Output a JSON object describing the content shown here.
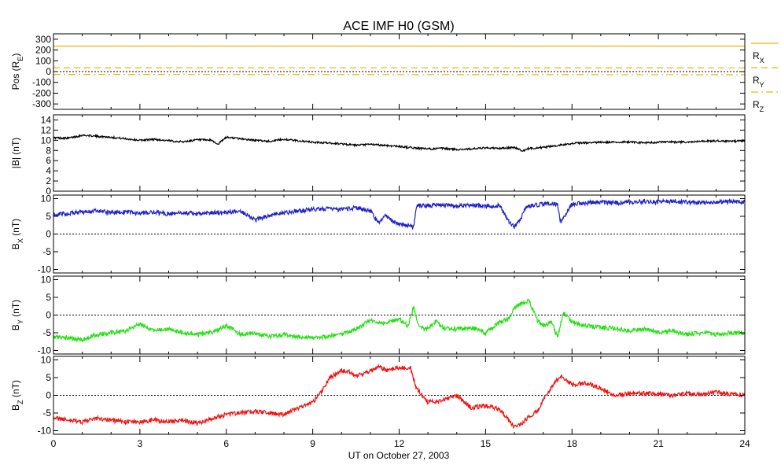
{
  "title": "ACE IMF H0 (GSM)",
  "xlabel": "UT on October 27, 2003",
  "x_ticks": [
    "0",
    "3",
    "6",
    "9",
    "12",
    "15",
    "18",
    "21",
    "24"
  ],
  "chart_data": [
    {
      "type": "line",
      "ylabel": "Pos (RE)",
      "ylabel_main": "Pos (R",
      "ylabel_sub": "E",
      "ylabel_end": ")",
      "ylim": [
        -350,
        350
      ],
      "yticks": [
        -300,
        -200,
        -100,
        0,
        100,
        200,
        300
      ],
      "ytick_labels": [
        "-300",
        "-200",
        "-100",
        "0",
        "100",
        "200",
        "300"
      ],
      "zero_line": true,
      "x": [
        0,
        24
      ],
      "series": [
        {
          "name": "RX",
          "name_main": "R",
          "name_sub": "X",
          "color": "#f0b400",
          "dash": "solid",
          "values": [
            236,
            236
          ]
        },
        {
          "name": "RY",
          "name_main": "R",
          "name_sub": "Y",
          "color": "#f0b400",
          "dash": "dashed",
          "values": [
            36,
            34
          ]
        },
        {
          "name": "RZ",
          "name_main": "R",
          "name_sub": "Z",
          "color": "#f0b400",
          "dash": "dashdot",
          "values": [
            -26,
            -29
          ]
        }
      ]
    },
    {
      "type": "line",
      "ylabel": "|B| (nT)",
      "ylim": [
        0,
        15
      ],
      "yticks": [
        0,
        2,
        4,
        6,
        8,
        10,
        12,
        14
      ],
      "ytick_labels": [
        "0",
        "2",
        "4",
        "6",
        "8",
        "10",
        "12",
        "14"
      ],
      "zero_line": false,
      "x": [
        0,
        0.5,
        1.0,
        1.5,
        2.0,
        2.5,
        3.0,
        3.5,
        4.0,
        4.5,
        5.0,
        5.5,
        5.7,
        6.0,
        6.5,
        7.0,
        7.5,
        8.0,
        8.5,
        9.0,
        9.5,
        10.0,
        10.5,
        11.0,
        11.5,
        12.0,
        12.5,
        13.0,
        13.5,
        14.0,
        14.5,
        15.0,
        15.5,
        16.0,
        16.3,
        16.5,
        17.0,
        17.5,
        18.0,
        18.5,
        19.0,
        19.5,
        20.0,
        20.5,
        21.0,
        21.5,
        22.0,
        22.5,
        23.0,
        23.5,
        24.0
      ],
      "series": [
        {
          "name": "|B|",
          "color": "#000000",
          "values": [
            10.5,
            10.4,
            11.0,
            10.8,
            10.6,
            10.3,
            10.0,
            10.2,
            9.9,
            9.7,
            10.1,
            10.0,
            9.2,
            10.6,
            10.3,
            10.0,
            9.8,
            10.2,
            9.9,
            9.6,
            9.5,
            9.3,
            9.0,
            9.2,
            9.0,
            8.8,
            8.5,
            8.3,
            8.4,
            8.2,
            8.3,
            8.5,
            8.4,
            8.6,
            7.9,
            8.4,
            8.6,
            9.0,
            9.4,
            9.5,
            9.6,
            9.6,
            9.7,
            9.5,
            9.6,
            9.7,
            9.6,
            9.8,
            9.9,
            9.8,
            9.9
          ]
        }
      ]
    },
    {
      "type": "line",
      "ylabel": "BX (nT)",
      "ylabel_main": "B",
      "ylabel_sub": "X",
      "ylabel_end": " (nT)",
      "ylim": [
        -11,
        11
      ],
      "yticks": [
        -10,
        -5,
        0,
        5,
        10
      ],
      "ytick_labels": [
        "-10",
        "-5",
        "0",
        "5",
        "10"
      ],
      "zero_line": true,
      "x": [
        0,
        0.5,
        1.0,
        1.5,
        2.0,
        2.5,
        3.0,
        3.5,
        4.0,
        4.5,
        5.0,
        5.5,
        6.0,
        6.5,
        6.8,
        7.0,
        7.3,
        7.6,
        8.0,
        8.5,
        9.0,
        9.5,
        10.0,
        10.5,
        11.0,
        11.3,
        11.5,
        11.8,
        12.0,
        12.3,
        12.5,
        12.6,
        13.0,
        13.5,
        14.0,
        14.5,
        15.0,
        15.5,
        15.8,
        16.0,
        16.2,
        16.4,
        16.6,
        17.0,
        17.5,
        17.6,
        18.0,
        18.5,
        19.0,
        19.5,
        20.0,
        20.5,
        21.0,
        21.5,
        22.0,
        22.5,
        23.0,
        23.5,
        24.0
      ],
      "series": [
        {
          "name": "BX",
          "color": "#2020c8",
          "values": [
            5.5,
            5.8,
            6.2,
            6.5,
            6.0,
            6.3,
            5.8,
            6.1,
            5.7,
            6.0,
            5.6,
            6.0,
            6.2,
            6.5,
            5.2,
            4.0,
            4.8,
            5.5,
            6.0,
            6.5,
            7.0,
            7.2,
            6.8,
            7.5,
            6.5,
            3.0,
            5.5,
            3.5,
            3.0,
            2.5,
            2.0,
            8.0,
            8.0,
            8.2,
            7.8,
            8.2,
            7.8,
            8.0,
            3.5,
            2.0,
            4.0,
            7.5,
            8.0,
            8.5,
            8.5,
            3.5,
            8.5,
            8.8,
            9.0,
            8.8,
            9.0,
            9.2,
            9.0,
            9.3,
            9.0,
            8.8,
            9.0,
            9.2,
            9.0
          ]
        }
      ]
    },
    {
      "type": "line",
      "ylabel": "BY (nT)",
      "ylabel_main": "B",
      "ylabel_sub": "Y",
      "ylabel_end": " (nT)",
      "ylim": [
        -11,
        11
      ],
      "yticks": [
        -10,
        -5,
        0,
        5,
        10
      ],
      "ytick_labels": [
        "-10",
        "-5",
        "0",
        "5",
        "10"
      ],
      "zero_line": true,
      "x": [
        0,
        0.5,
        1.0,
        1.5,
        2.0,
        2.5,
        3.0,
        3.5,
        4.0,
        4.5,
        5.0,
        5.5,
        6.0,
        6.5,
        7.0,
        7.5,
        8.0,
        8.5,
        9.0,
        9.5,
        10.0,
        10.5,
        11.0,
        11.5,
        12.0,
        12.3,
        12.5,
        12.7,
        13.0,
        13.3,
        13.5,
        14.0,
        14.5,
        15.0,
        15.5,
        15.8,
        16.0,
        16.3,
        16.5,
        16.8,
        17.0,
        17.3,
        17.5,
        17.7,
        18.0,
        18.5,
        19.0,
        19.5,
        20.0,
        20.5,
        21.0,
        21.5,
        22.0,
        22.5,
        23.0,
        23.5,
        24.0
      ],
      "series": [
        {
          "name": "BY",
          "color": "#22e010",
          "values": [
            -6.0,
            -6.5,
            -7.0,
            -5.5,
            -5.0,
            -4.5,
            -2.5,
            -4.5,
            -4.0,
            -5.0,
            -5.5,
            -4.8,
            -3.0,
            -5.5,
            -5.0,
            -6.0,
            -5.5,
            -6.0,
            -6.5,
            -6.0,
            -5.5,
            -4.0,
            -1.5,
            -2.5,
            -1.0,
            -3.0,
            2.0,
            -3.5,
            -4.0,
            -1.5,
            -3.5,
            -4.0,
            -3.5,
            -5.0,
            -2.0,
            -1.0,
            2.0,
            3.5,
            4.0,
            -1.5,
            -3.0,
            -2.0,
            -6.5,
            1.0,
            -2.0,
            -3.0,
            -3.5,
            -3.8,
            -4.5,
            -4.0,
            -4.8,
            -4.5,
            -5.5,
            -5.0,
            -5.5,
            -5.0,
            -5.0
          ]
        }
      ]
    },
    {
      "type": "line",
      "ylabel": "BZ (nT)",
      "ylabel_main": "B",
      "ylabel_sub": "Z",
      "ylabel_end": " (nT)",
      "ylim": [
        -11,
        11
      ],
      "yticks": [
        -10,
        -5,
        0,
        5,
        10
      ],
      "ytick_labels": [
        "-10",
        "-5",
        "0",
        "5",
        "10"
      ],
      "zero_line": true,
      "x": [
        0,
        0.5,
        1.0,
        1.5,
        2.0,
        2.5,
        3.0,
        3.5,
        4.0,
        4.5,
        5.0,
        5.5,
        6.0,
        6.5,
        7.0,
        7.5,
        8.0,
        8.5,
        9.0,
        9.3,
        9.6,
        10.0,
        10.3,
        10.5,
        10.8,
        11.0,
        11.3,
        11.6,
        12.0,
        12.4,
        12.6,
        13.0,
        13.5,
        14.0,
        14.5,
        15.0,
        15.5,
        15.8,
        16.0,
        16.2,
        16.5,
        16.8,
        17.0,
        17.3,
        17.6,
        18.0,
        18.5,
        19.0,
        19.5,
        20.0,
        20.5,
        21.0,
        21.5,
        22.0,
        22.5,
        23.0,
        23.5,
        24.0
      ],
      "series": [
        {
          "name": "BZ",
          "color": "#f01010",
          "values": [
            -6.5,
            -7.0,
            -7.5,
            -6.5,
            -7.0,
            -7.5,
            -7.5,
            -7.0,
            -7.5,
            -7.0,
            -8.0,
            -6.5,
            -5.5,
            -5.0,
            -4.5,
            -5.0,
            -5.5,
            -3.5,
            -2.0,
            1.0,
            5.0,
            7.0,
            6.5,
            5.5,
            6.0,
            7.0,
            8.0,
            7.0,
            8.0,
            7.5,
            2.0,
            -2.0,
            -1.5,
            0.0,
            -3.5,
            -3.0,
            -4.0,
            -7.0,
            -9.0,
            -8.5,
            -6.0,
            -4.5,
            -1.5,
            2.5,
            5.5,
            3.0,
            3.5,
            2.0,
            0.0,
            0.5,
            0.5,
            0.5,
            0.0,
            0.5,
            0.3,
            0.8,
            0.3,
            0.0
          ]
        }
      ]
    }
  ]
}
